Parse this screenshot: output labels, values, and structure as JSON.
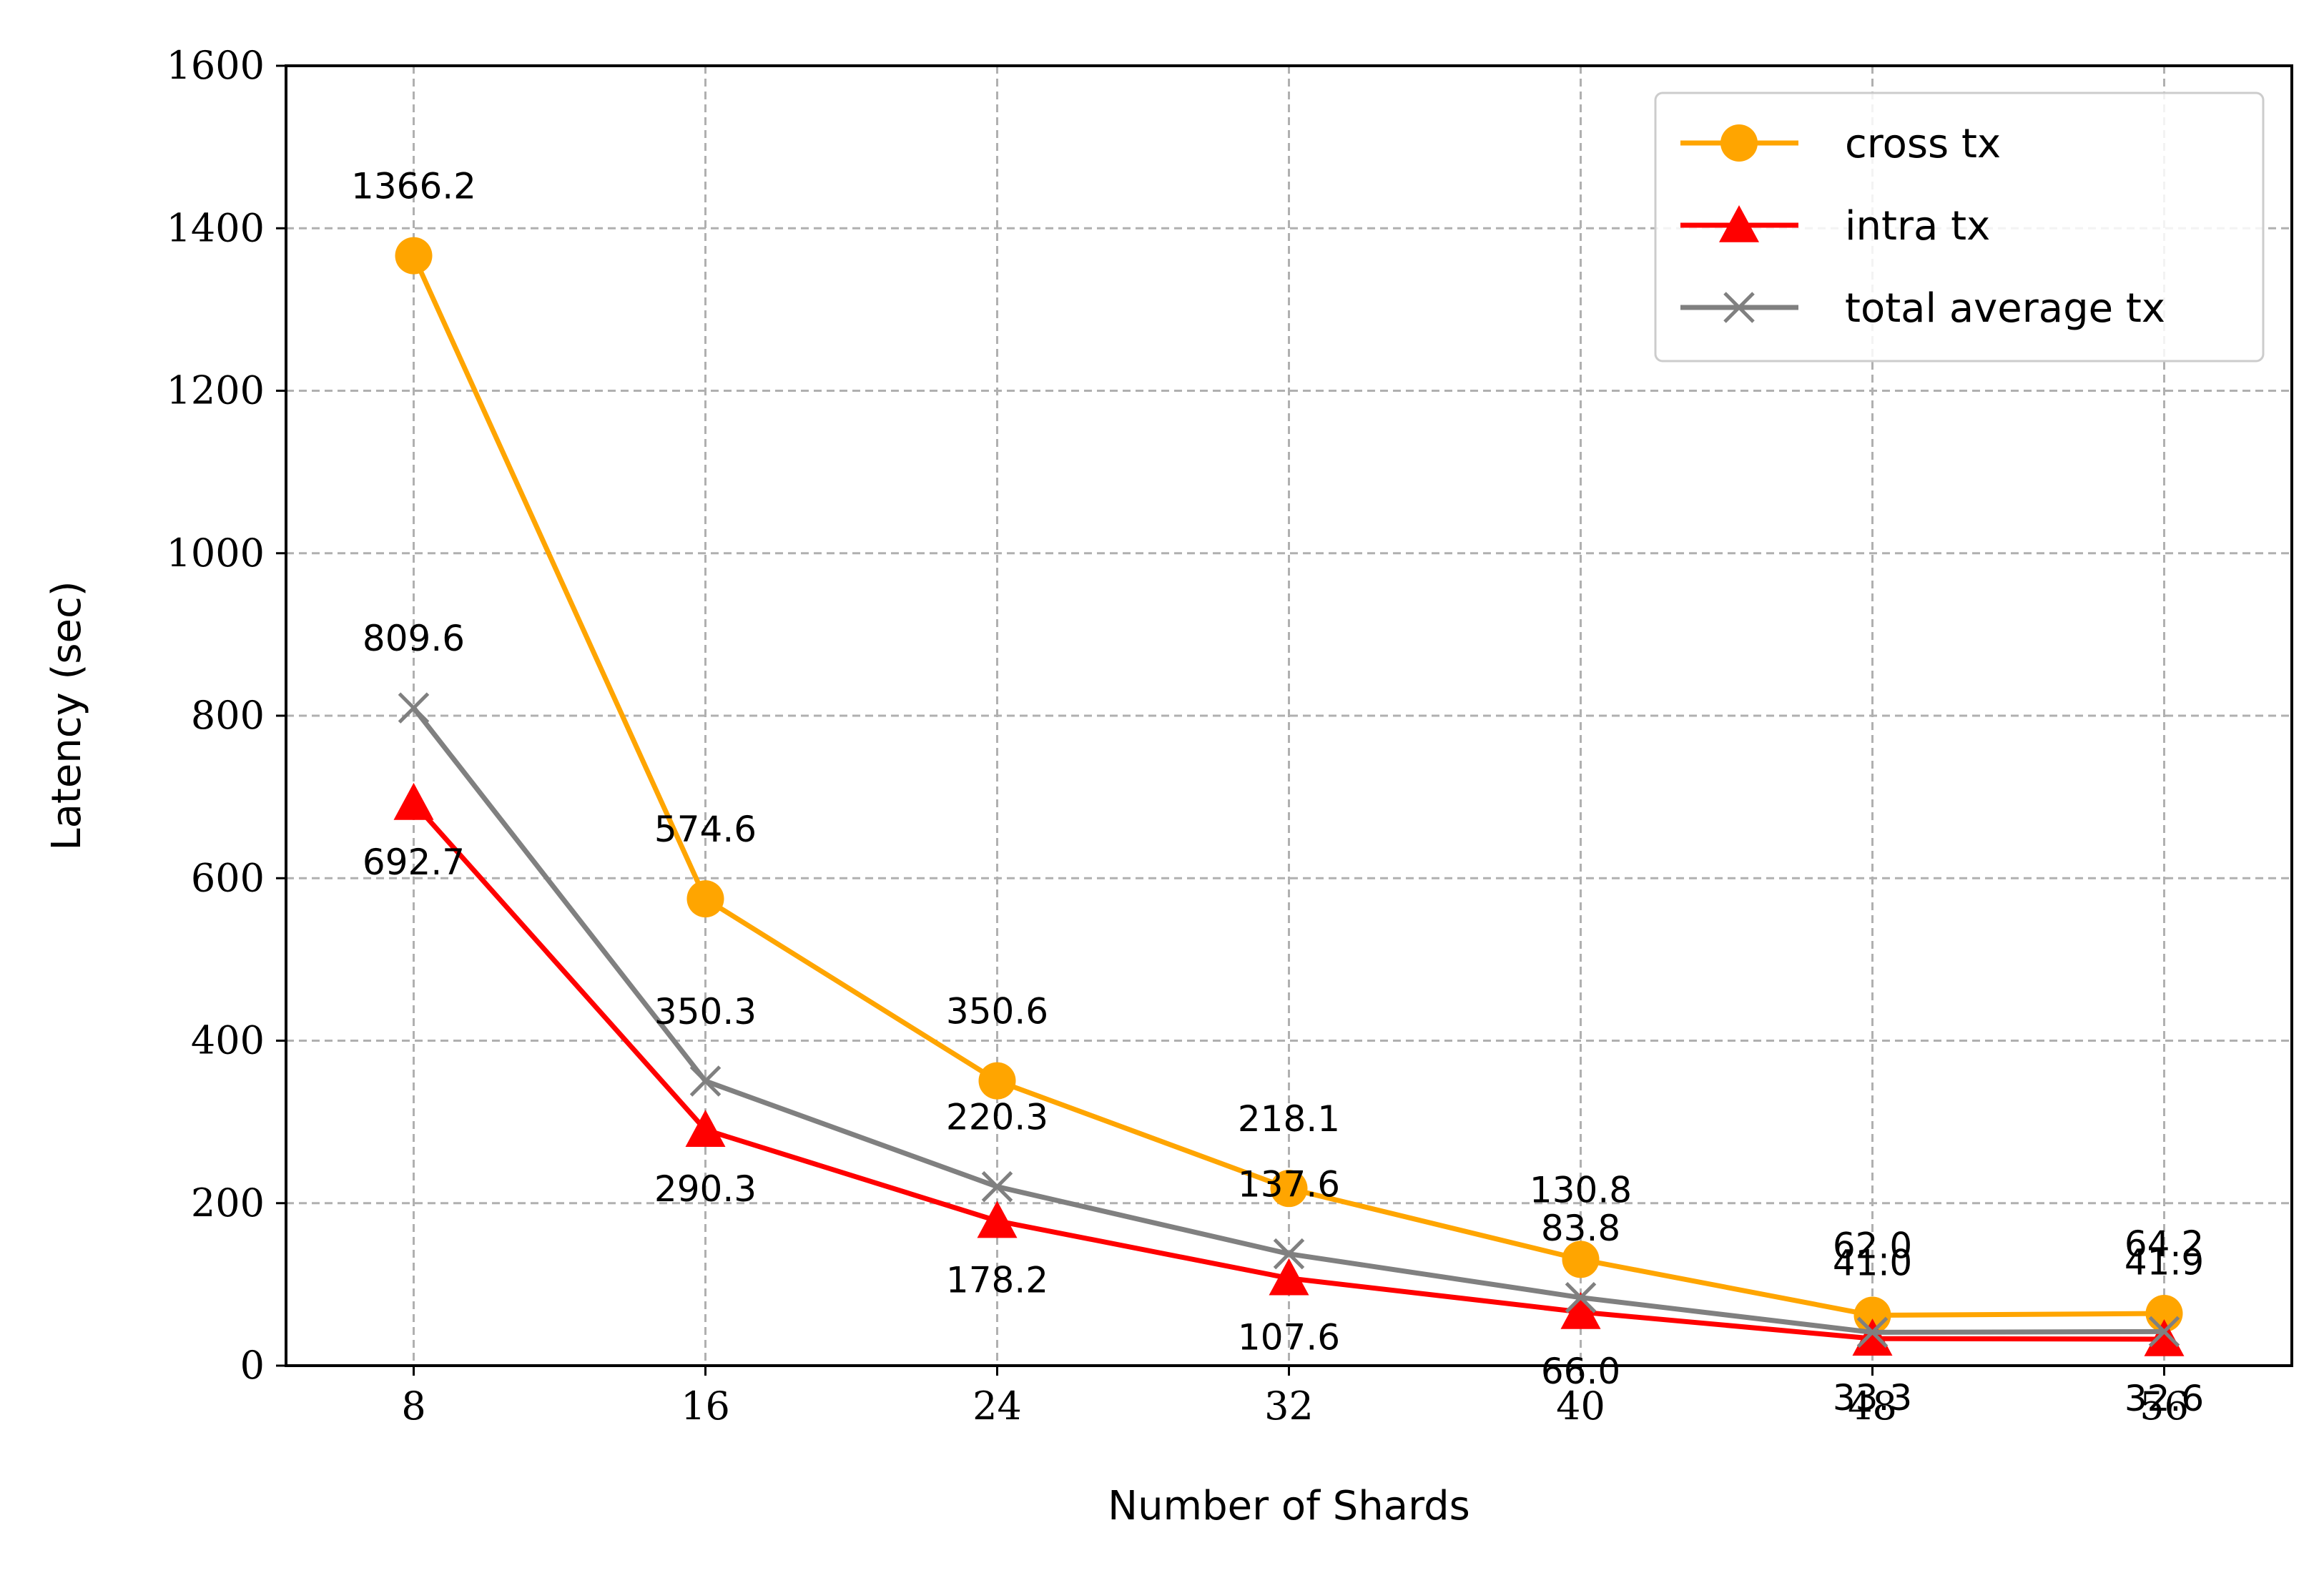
{
  "chart_data": {
    "type": "line",
    "xlabel": "Number of Shards",
    "ylabel": "Latency (sec)",
    "x": [
      8,
      16,
      24,
      32,
      40,
      48,
      56
    ],
    "ylim": [
      0,
      1600
    ],
    "yticks": [
      0,
      200,
      400,
      600,
      800,
      1000,
      1200,
      1400,
      1600
    ],
    "grid": true,
    "legend_position": "top-right",
    "series": [
      {
        "name": "cross tx",
        "color": "#FFA500",
        "marker": "circle",
        "values": [
          1366.2,
          574.6,
          350.6,
          218.1,
          130.8,
          62.0,
          64.2
        ],
        "labels": [
          "1366.2",
          "574.6",
          "350.6",
          "218.1",
          "130.8",
          "62.0",
          "64.2"
        ],
        "label_position": "above"
      },
      {
        "name": "intra tx",
        "color": "#FF0000",
        "marker": "triangle",
        "values": [
          692.7,
          290.3,
          178.2,
          107.6,
          66.0,
          33.3,
          32.6
        ],
        "labels": [
          "692.7",
          "290.3",
          "178.2",
          "107.6",
          "66.0",
          "33.3",
          "32.6"
        ],
        "label_position": "below"
      },
      {
        "name": "total average tx",
        "color": "#808080",
        "marker": "x",
        "values": [
          809.6,
          350.3,
          220.3,
          137.6,
          83.8,
          41.0,
          41.9
        ],
        "labels": [
          "809.6",
          "350.3",
          "220.3",
          "137.6",
          "83.8",
          "41.0",
          "41.9"
        ],
        "label_position": "above"
      }
    ]
  }
}
